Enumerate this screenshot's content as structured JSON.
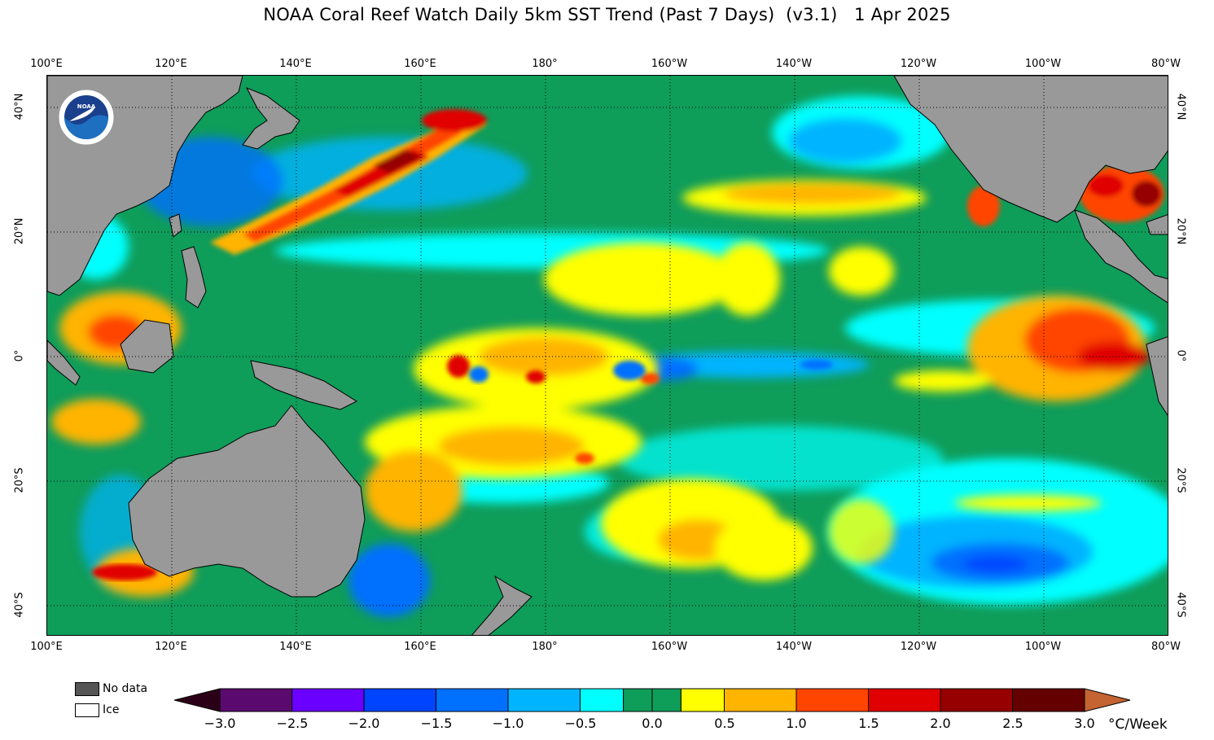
{
  "title": "NOAA Coral Reef Watch Daily 5km SST Trend (Past 7 Days)  (v3.1)   1 Apr 2025",
  "map": {
    "lon_labels": [
      "100°E",
      "120°E",
      "140°E",
      "160°E",
      "180°",
      "160°W",
      "140°W",
      "120°W",
      "100°W",
      "80°W"
    ],
    "lat_labels_left": [
      "40°N",
      "20°N",
      "0°",
      "20°S",
      "40°S"
    ],
    "lat_labels_right": [
      "40°N",
      "20°N",
      "0°",
      "20°S",
      "40°S"
    ],
    "land_color": "#999999",
    "variable": "SST Trend",
    "date": "1 Apr 2025"
  },
  "legend": {
    "no_data_label": "No data",
    "ice_label": "Ice",
    "no_data_color": "#555555",
    "ice_color": "#ffffff"
  },
  "colorbar": {
    "unit": "°C/Week",
    "tick_labels": [
      "−3.0",
      "−2.5",
      "−2.0",
      "−1.5",
      "−1.0",
      "−0.5",
      "0.0",
      "0.5",
      "1.0",
      "1.5",
      "2.0",
      "2.5",
      "3.0"
    ],
    "min_color": "#2b0016",
    "max_color": "#c46432",
    "bins": [
      {
        "from": -3.0,
        "to": -2.5,
        "color": "#5a0a6e"
      },
      {
        "from": -2.5,
        "to": -2.0,
        "color": "#6a00ff"
      },
      {
        "from": -2.0,
        "to": -1.5,
        "color": "#0044ff"
      },
      {
        "from": -1.5,
        "to": -1.0,
        "color": "#0070ff"
      },
      {
        "from": -1.0,
        "to": -0.5,
        "color": "#00b4ff"
      },
      {
        "from": -0.5,
        "to": -0.2,
        "color": "#00ffff"
      },
      {
        "from": -0.2,
        "to": 0.0,
        "color": "#0f9d5a"
      },
      {
        "from": 0.0,
        "to": 0.2,
        "color": "#0f9d5a"
      },
      {
        "from": 0.2,
        "to": 0.5,
        "color": "#ffff00"
      },
      {
        "from": 0.5,
        "to": 1.0,
        "color": "#ffb400"
      },
      {
        "from": 1.0,
        "to": 1.5,
        "color": "#ff4500"
      },
      {
        "from": 1.5,
        "to": 2.0,
        "color": "#e00000"
      },
      {
        "from": 2.0,
        "to": 2.5,
        "color": "#960000"
      },
      {
        "from": 2.5,
        "to": 3.0,
        "color": "#640000"
      }
    ]
  }
}
